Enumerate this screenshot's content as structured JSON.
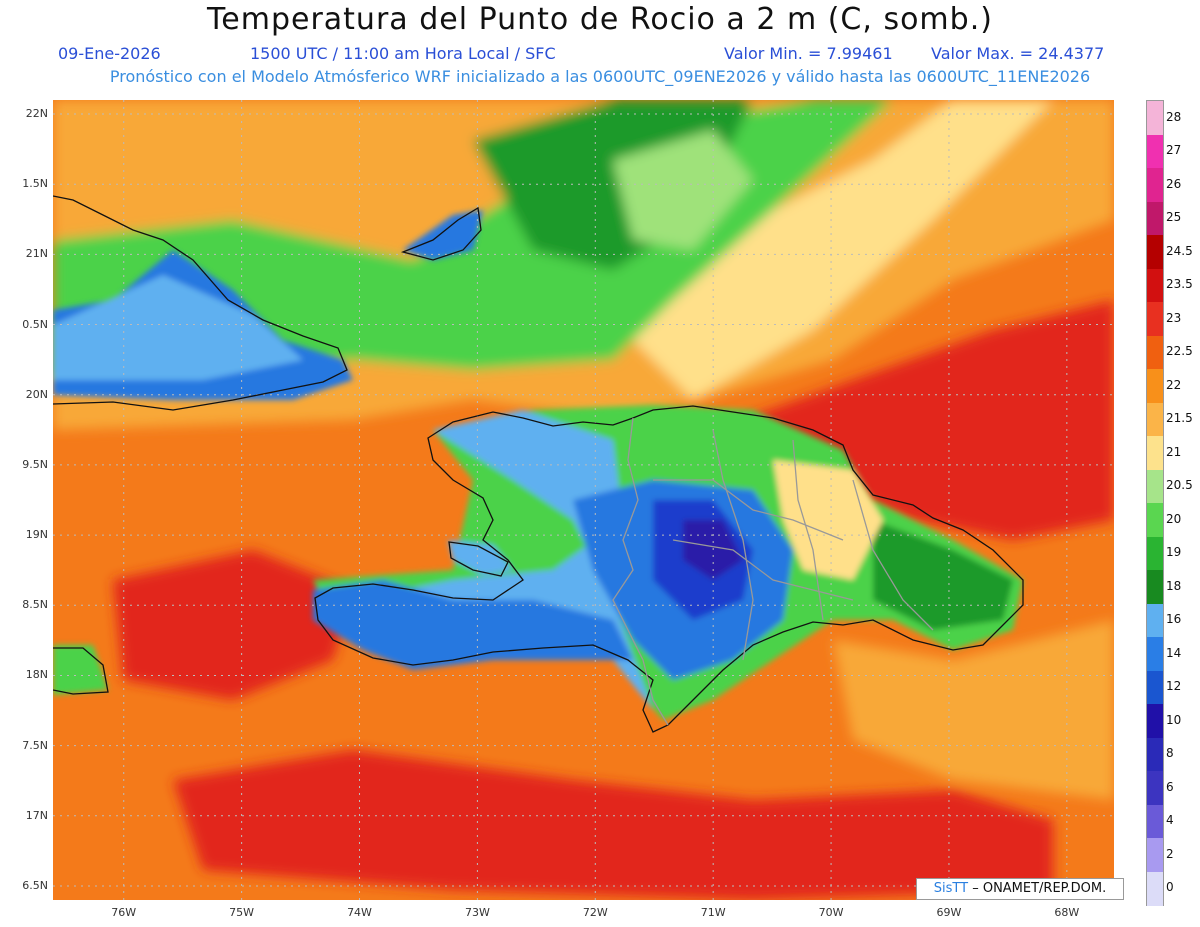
{
  "title": "Temperatura del Punto de Rocio a 2 m (C, somb.)",
  "subtitle": {
    "date": "09-Ene-2026",
    "time": "1500 UTC / 11:00 am Hora Local / SFC",
    "min": "Valor Min. = 7.99461",
    "max": "Valor Max. = 24.4377",
    "line2": "Pronóstico con el Modelo Atmósferico WRF inicializado a las 0600UTC_09ENE2026 y válido hasta las  0600UTC_11ENE2026"
  },
  "credit": {
    "logo": "SisTT",
    "text": "– ONAMET/REP.DOM."
  },
  "map": {
    "lat_ticks": [
      "22N",
      "1.5N",
      "21N",
      "0.5N",
      "20N",
      "9.5N",
      "19N",
      "8.5N",
      "18N",
      "7.5N",
      "17N",
      "6.5N"
    ],
    "lon_ticks": [
      "76W",
      "75W",
      "74W",
      "73W",
      "72W",
      "71W",
      "70W",
      "69W",
      "68W"
    ],
    "lat_values": [
      22,
      21.5,
      21,
      20.5,
      20,
      19.5,
      19,
      18.5,
      18,
      17.5,
      17,
      16.5
    ],
    "lon_values": [
      -76,
      -75,
      -74,
      -73,
      -72,
      -71,
      -70,
      -69,
      -68
    ],
    "lat_range": [
      16.4,
      22.1
    ],
    "lon_range": [
      -76.6,
      -67.6
    ],
    "colors": {
      "sea_warm": "#f47a1a",
      "sea_hot": "#e2261a",
      "sea_mild": "#f8a838",
      "light": "#ffe08a",
      "green_light": "#9fe27a",
      "green": "#4cd24a",
      "green_dark": "#1e9a2a",
      "blue_light": "#5fb0f0",
      "blue": "#2878e0",
      "blue_dark": "#1a3ccc",
      "indigo": "#2a1aa8",
      "coast": "#111111",
      "border": "#999999",
      "grid": "#bbbbbb"
    }
  },
  "colorbar": {
    "levels": [
      "28",
      "27",
      "26",
      "25",
      "24.5",
      "23.5",
      "23",
      "22.5",
      "22",
      "21.5",
      "21",
      "20.5",
      "20",
      "19",
      "18",
      "16",
      "14",
      "12",
      "10",
      "8",
      "6",
      "4",
      "2",
      "0"
    ],
    "colors": [
      "#f4b4d8",
      "#f030b0",
      "#e02490",
      "#c0186a",
      "#b40000",
      "#d21010",
      "#e83020",
      "#f06010",
      "#f8901a",
      "#fbb448",
      "#fde28c",
      "#a6e48a",
      "#5ad650",
      "#2ab432",
      "#188a20",
      "#5fb0f0",
      "#2a7ee6",
      "#1a56d0",
      "#2010a8",
      "#2a2ab8",
      "#3c34c0",
      "#6a5ad8",
      "#a89af0",
      "#dcdcf8"
    ]
  }
}
